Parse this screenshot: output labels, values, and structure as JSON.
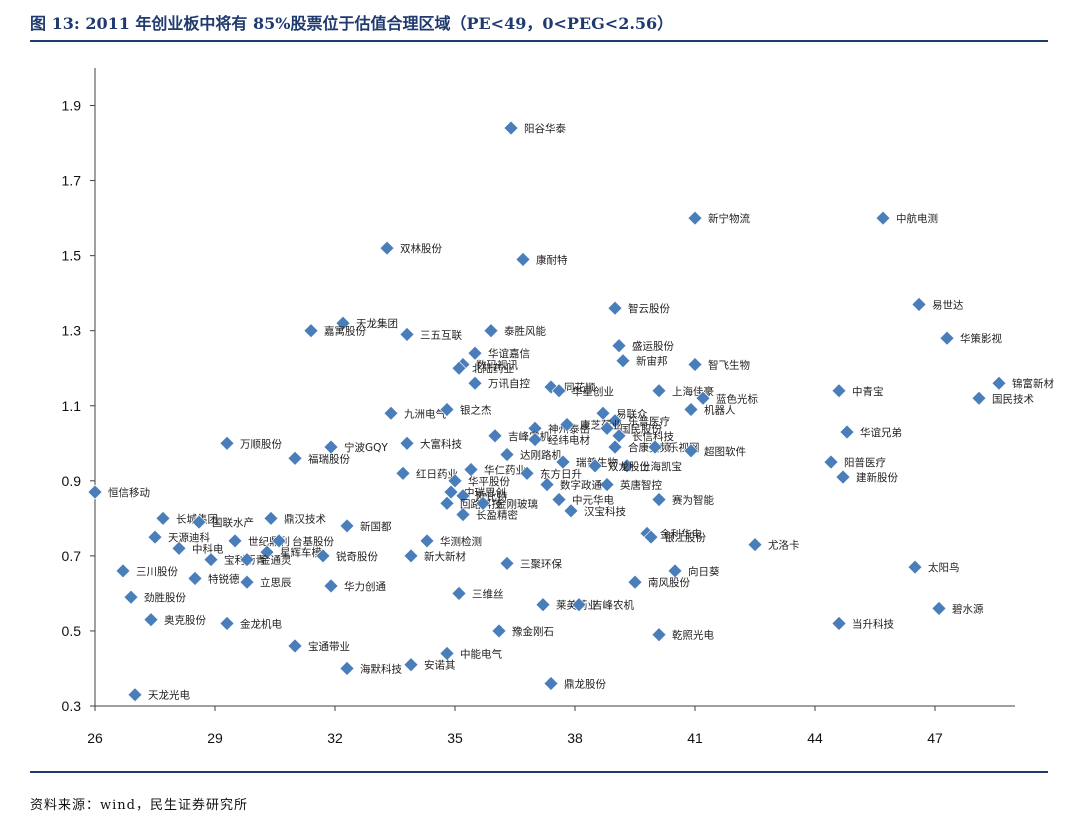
{
  "figure_title": "图 13:  2011 年创业板中将有 85%股票位于估值合理区域（PE<49，0<PEG<2.56）",
  "source_note": "资料来源：wind，民生证券研究所",
  "colors": {
    "title": "#1f3a6e",
    "marker": "#4a7ebb",
    "axis": "#404040",
    "rule": "#1f3a6e"
  },
  "chart_data": {
    "type": "scatter",
    "title": "",
    "xlabel": "",
    "ylabel": "",
    "xlim": [
      26,
      49
    ],
    "ylim": [
      0.3,
      2.0
    ],
    "x_ticks": [
      26,
      29,
      32,
      35,
      38,
      41,
      44,
      47
    ],
    "y_ticks": [
      0.3,
      0.5,
      0.7,
      0.9,
      1.1,
      1.3,
      1.5,
      1.7,
      1.9
    ],
    "y_tick_labels": [
      "0.3",
      "0.5",
      "0.7",
      "0.9",
      "1.1",
      "1.3",
      "1.5",
      "1.7",
      "1.9"
    ],
    "grid": false,
    "legend": "none",
    "marker": "diamond",
    "points": [
      {
        "label": "阳谷华泰",
        "x": 36.4,
        "y": 1.84
      },
      {
        "label": "新宁物流",
        "x": 41.0,
        "y": 1.6
      },
      {
        "label": "中航电测",
        "x": 45.7,
        "y": 1.6
      },
      {
        "label": "双林股份",
        "x": 33.3,
        "y": 1.52
      },
      {
        "label": "康耐特",
        "x": 36.7,
        "y": 1.49
      },
      {
        "label": "易世达",
        "x": 46.6,
        "y": 1.37
      },
      {
        "label": "智云股份",
        "x": 39.0,
        "y": 1.36
      },
      {
        "label": "天龙集团",
        "x": 32.2,
        "y": 1.32
      },
      {
        "label": "嘉寓股份",
        "x": 31.4,
        "y": 1.3
      },
      {
        "label": "三五互联",
        "x": 33.8,
        "y": 1.29
      },
      {
        "label": "泰胜风能",
        "x": 35.9,
        "y": 1.3
      },
      {
        "label": "华策影视",
        "x": 47.3,
        "y": 1.28
      },
      {
        "label": "盛运股份",
        "x": 39.1,
        "y": 1.26
      },
      {
        "label": "华谊嘉信",
        "x": 35.5,
        "y": 1.24
      },
      {
        "label": "数码视讯",
        "x": 35.2,
        "y": 1.21
      },
      {
        "label": "新宙邦",
        "x": 39.2,
        "y": 1.22
      },
      {
        "label": "智飞生物",
        "x": 41.0,
        "y": 1.21
      },
      {
        "label": "北陆药业",
        "x": 35.1,
        "y": 1.2
      },
      {
        "label": "同花顺",
        "x": 37.4,
        "y": 1.15
      },
      {
        "label": "万讯自控",
        "x": 35.5,
        "y": 1.16
      },
      {
        "label": "华星创业",
        "x": 37.6,
        "y": 1.14
      },
      {
        "label": "上海佳豪",
        "x": 40.1,
        "y": 1.14
      },
      {
        "label": "中青宝",
        "x": 44.6,
        "y": 1.14
      },
      {
        "label": "锦富新材",
        "x": 48.6,
        "y": 1.16
      },
      {
        "label": "国民技术",
        "x": 48.1,
        "y": 1.12
      },
      {
        "label": "蓝色光标",
        "x": 41.2,
        "y": 1.12
      },
      {
        "label": "机器人",
        "x": 40.9,
        "y": 1.09
      },
      {
        "label": "易联众",
        "x": 38.7,
        "y": 1.08
      },
      {
        "label": "九洲电气",
        "x": 33.4,
        "y": 1.08
      },
      {
        "label": "银之杰",
        "x": 34.8,
        "y": 1.09
      },
      {
        "label": "乐普医疗",
        "x": 39.0,
        "y": 1.06
      },
      {
        "label": "神州泰岳",
        "x": 37.0,
        "y": 1.04
      },
      {
        "label": "康芝药业",
        "x": 37.8,
        "y": 1.05
      },
      {
        "label": "国民股份",
        "x": 38.8,
        "y": 1.04
      },
      {
        "label": "吉峰农机",
        "x": 36.0,
        "y": 1.02
      },
      {
        "label": "长信科技",
        "x": 39.1,
        "y": 1.02
      },
      {
        "label": "华谊兄弟",
        "x": 44.8,
        "y": 1.03
      },
      {
        "label": "经纬电材",
        "x": 37.0,
        "y": 1.01
      },
      {
        "label": "宁波GQY",
        "x": 31.9,
        "y": 0.99
      },
      {
        "label": "万顺股份",
        "x": 29.3,
        "y": 1.0
      },
      {
        "label": "大富科技",
        "x": 33.8,
        "y": 1.0
      },
      {
        "label": "合康变频",
        "x": 39.0,
        "y": 0.99
      },
      {
        "label": "乐视网",
        "x": 40.0,
        "y": 0.99
      },
      {
        "label": "超图软件",
        "x": 40.9,
        "y": 0.98
      },
      {
        "label": "达刚路机",
        "x": 36.3,
        "y": 0.97
      },
      {
        "label": "福瑞股份",
        "x": 31.0,
        "y": 0.96
      },
      {
        "label": "瑞普生物",
        "x": 37.7,
        "y": 0.95
      },
      {
        "label": "阳普医疗",
        "x": 44.4,
        "y": 0.95
      },
      {
        "label": "上海凯宝",
        "x": 39.3,
        "y": 0.94
      },
      {
        "label": "双龙股份",
        "x": 38.5,
        "y": 0.94
      },
      {
        "label": "华仁药业",
        "x": 35.4,
        "y": 0.93
      },
      {
        "label": "东方日升",
        "x": 36.8,
        "y": 0.92
      },
      {
        "label": "红日药业",
        "x": 33.7,
        "y": 0.92
      },
      {
        "label": "建新股份",
        "x": 44.7,
        "y": 0.91
      },
      {
        "label": "恒信移动",
        "x": 26.0,
        "y": 0.87
      },
      {
        "label": "华平股份",
        "x": 35.0,
        "y": 0.9
      },
      {
        "label": "英唐智控",
        "x": 38.8,
        "y": 0.89
      },
      {
        "label": "数字政通",
        "x": 37.3,
        "y": 0.89
      },
      {
        "label": "中瑞思创",
        "x": 34.9,
        "y": 0.87
      },
      {
        "label": "欧比特",
        "x": 35.2,
        "y": 0.86
      },
      {
        "label": "中元华电",
        "x": 37.6,
        "y": 0.85
      },
      {
        "label": "赛为智能",
        "x": 40.1,
        "y": 0.85
      },
      {
        "label": "回路科技",
        "x": 34.8,
        "y": 0.84
      },
      {
        "label": "金刚玻璃",
        "x": 35.7,
        "y": 0.84
      },
      {
        "label": "汉宝科技",
        "x": 37.9,
        "y": 0.82
      },
      {
        "label": "长盈精密",
        "x": 35.2,
        "y": 0.81
      },
      {
        "label": "长城集团",
        "x": 27.7,
        "y": 0.8
      },
      {
        "label": "鼎汉技术",
        "x": 30.4,
        "y": 0.8
      },
      {
        "label": "国联水产",
        "x": 28.6,
        "y": 0.79
      },
      {
        "label": "新国都",
        "x": 32.3,
        "y": 0.78
      },
      {
        "label": "天源迪科",
        "x": 27.5,
        "y": 0.75
      },
      {
        "label": "世纪鼎利",
        "x": 29.5,
        "y": 0.74
      },
      {
        "label": "台基股份",
        "x": 30.6,
        "y": 0.74
      },
      {
        "label": "金利华电",
        "x": 39.8,
        "y": 0.76
      },
      {
        "label": "银江股份",
        "x": 39.9,
        "y": 0.75
      },
      {
        "label": "尤洛卡",
        "x": 42.5,
        "y": 0.73
      },
      {
        "label": "华测检测",
        "x": 34.3,
        "y": 0.74
      },
      {
        "label": "中科电",
        "x": 28.1,
        "y": 0.72
      },
      {
        "label": "星辉车模",
        "x": 30.3,
        "y": 0.71
      },
      {
        "label": "锐奇股份",
        "x": 31.7,
        "y": 0.7
      },
      {
        "label": "新大新材",
        "x": 33.9,
        "y": 0.7
      },
      {
        "label": "宝利沥青",
        "x": 28.9,
        "y": 0.69
      },
      {
        "label": "金通灵",
        "x": 29.8,
        "y": 0.69
      },
      {
        "label": "三聚环保",
        "x": 36.3,
        "y": 0.68
      },
      {
        "label": "向日葵",
        "x": 40.5,
        "y": 0.66
      },
      {
        "label": "太阳鸟",
        "x": 46.5,
        "y": 0.67
      },
      {
        "label": "三川股份",
        "x": 26.7,
        "y": 0.66
      },
      {
        "label": "特锐德",
        "x": 28.5,
        "y": 0.64
      },
      {
        "label": "立思辰",
        "x": 29.8,
        "y": 0.63
      },
      {
        "label": "华力创通",
        "x": 31.9,
        "y": 0.62
      },
      {
        "label": "南风股份",
        "x": 39.5,
        "y": 0.63
      },
      {
        "label": "劲胜股份",
        "x": 26.9,
        "y": 0.59
      },
      {
        "label": "三维丝",
        "x": 35.1,
        "y": 0.6
      },
      {
        "label": "莱美药业",
        "x": 37.2,
        "y": 0.57
      },
      {
        "label": "吉峰农机",
        "x": 38.1,
        "y": 0.57
      },
      {
        "label": "碧水源",
        "x": 47.1,
        "y": 0.56
      },
      {
        "label": "奥克股份",
        "x": 27.4,
        "y": 0.53
      },
      {
        "label": "金龙机电",
        "x": 29.3,
        "y": 0.52
      },
      {
        "label": "当升科技",
        "x": 44.6,
        "y": 0.52
      },
      {
        "label": "豫金刚石",
        "x": 36.1,
        "y": 0.5
      },
      {
        "label": "乾照光电",
        "x": 40.1,
        "y": 0.49
      },
      {
        "label": "宝通带业",
        "x": 31.0,
        "y": 0.46
      },
      {
        "label": "中能电气",
        "x": 34.8,
        "y": 0.44
      },
      {
        "label": "海默科技",
        "x": 32.3,
        "y": 0.4
      },
      {
        "label": "安诺其",
        "x": 33.9,
        "y": 0.41
      },
      {
        "label": "鼎龙股份",
        "x": 37.4,
        "y": 0.36
      },
      {
        "label": "天龙光电",
        "x": 27.0,
        "y": 0.33
      }
    ]
  }
}
